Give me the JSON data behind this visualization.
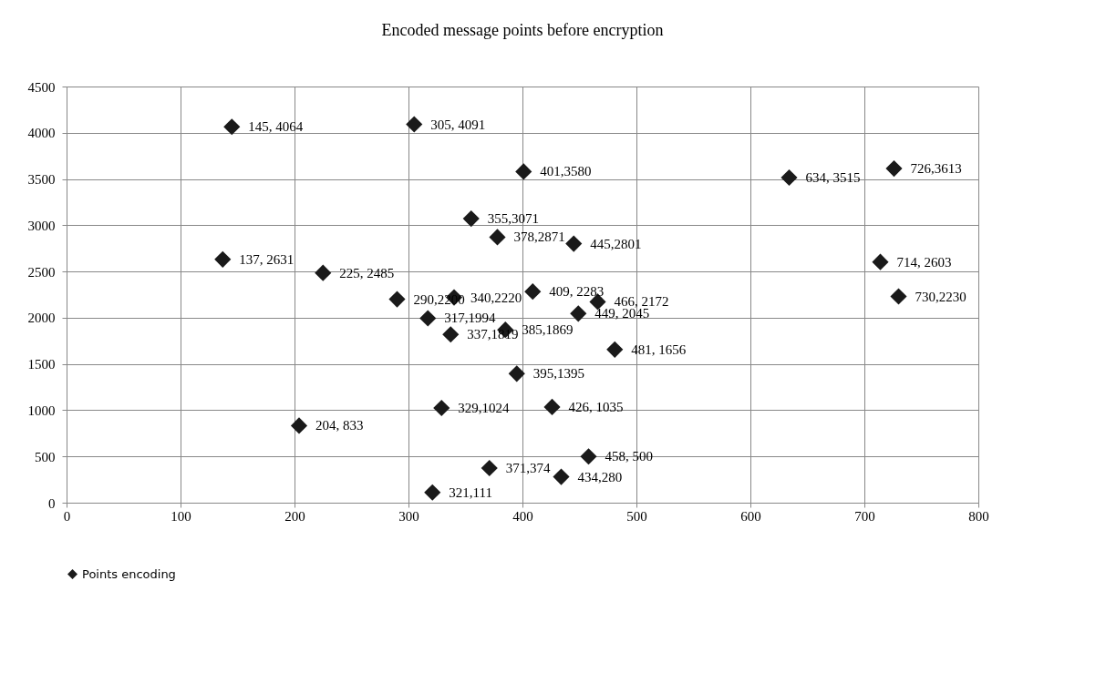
{
  "chart_data": {
    "type": "scatter",
    "title": "Encoded message points before encryption",
    "x": [
      145,
      305,
      401,
      634,
      726,
      355,
      378,
      445,
      137,
      225,
      714,
      290,
      340,
      409,
      466,
      730,
      317,
      449,
      337,
      385,
      481,
      395,
      329,
      426,
      204,
      458,
      371,
      434,
      321
    ],
    "series": [
      {
        "name": "Points encoding",
        "color": "#1a1a1a",
        "values": [
          4064,
          4091,
          3580,
          3515,
          3613,
          3071,
          2871,
          2801,
          2631,
          2485,
          2603,
          2200,
          2220,
          2283,
          2172,
          2230,
          1994,
          2045,
          1819,
          1869,
          1656,
          1395,
          1024,
          1035,
          833,
          500,
          374,
          280,
          111
        ]
      }
    ],
    "annotations": [
      {
        "text": "145, 4064",
        "x": 145,
        "y": 4064
      },
      {
        "text": "305, 4091",
        "x": 305,
        "y": 4091
      },
      {
        "text": "401,3580",
        "x": 401,
        "y": 3580
      },
      {
        "text": "634, 3515",
        "x": 634,
        "y": 3515
      },
      {
        "text": "726,3613",
        "x": 726,
        "y": 3613
      },
      {
        "text": "355,3071",
        "x": 355,
        "y": 3071
      },
      {
        "text": "378,2871",
        "x": 378,
        "y": 2871
      },
      {
        "text": "445,2801",
        "x": 445,
        "y": 2801
      },
      {
        "text": "137, 2631",
        "x": 137,
        "y": 2631
      },
      {
        "text": "225, 2485",
        "x": 225,
        "y": 2485
      },
      {
        "text": "714, 2603",
        "x": 714,
        "y": 2603
      },
      {
        "text": "290,2200",
        "x": 290,
        "y": 2200
      },
      {
        "text": "340,2220",
        "x": 340,
        "y": 2220
      },
      {
        "text": "409, 2283",
        "x": 409,
        "y": 2283
      },
      {
        "text": "466, 2172",
        "x": 466,
        "y": 2172
      },
      {
        "text": "730,2230",
        "x": 730,
        "y": 2230
      },
      {
        "text": "317,1994",
        "x": 317,
        "y": 1994
      },
      {
        "text": "449, 2045",
        "x": 449,
        "y": 2045
      },
      {
        "text": "337,1819",
        "x": 337,
        "y": 1819
      },
      {
        "text": "385,1869",
        "x": 385,
        "y": 1869
      },
      {
        "text": "481, 1656",
        "x": 481,
        "y": 1656
      },
      {
        "text": "395,1395",
        "x": 395,
        "y": 1395
      },
      {
        "text": "329,1024",
        "x": 329,
        "y": 1024
      },
      {
        "text": "426, 1035",
        "x": 426,
        "y": 1035
      },
      {
        "text": "204, 833",
        "x": 204,
        "y": 833
      },
      {
        "text": "458, 500",
        "x": 458,
        "y": 500
      },
      {
        "text": "371,374",
        "x": 371,
        "y": 374
      },
      {
        "text": "434,280",
        "x": 434,
        "y": 280
      },
      {
        "text": "321,111",
        "x": 321,
        "y": 111
      }
    ],
    "xlim": [
      0,
      800
    ],
    "xticks": [
      0,
      100,
      200,
      300,
      400,
      500,
      600,
      700,
      800
    ],
    "ylim": [
      0,
      4500
    ],
    "yticks": [
      0,
      500,
      1000,
      1500,
      2000,
      2500,
      3000,
      3500,
      4000,
      4500
    ],
    "grid": true,
    "legend": "bottom",
    "marker": "diamond"
  }
}
